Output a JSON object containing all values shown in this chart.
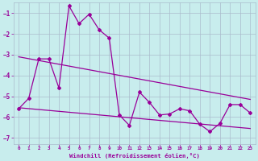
{
  "xlabel": "Windchill (Refroidissement éolien,°C)",
  "bg_color": "#c8eded",
  "grid_color": "#aabbcc",
  "line_color": "#990099",
  "xlim": [
    -0.5,
    23.5
  ],
  "ylim": [
    -7.3,
    -0.5
  ],
  "yticks": [
    -7,
    -6,
    -5,
    -4,
    -3,
    -2,
    -1
  ],
  "xticks": [
    0,
    1,
    2,
    3,
    4,
    5,
    6,
    7,
    8,
    9,
    10,
    11,
    12,
    13,
    14,
    15,
    16,
    17,
    18,
    19,
    20,
    21,
    22,
    23
  ],
  "line1_x": [
    0,
    1,
    2,
    3,
    4,
    5,
    6,
    7,
    8,
    9,
    10,
    11,
    12,
    13,
    14,
    15,
    16,
    17,
    18,
    19,
    20,
    21,
    22,
    23
  ],
  "line1_y": [
    -5.6,
    -5.1,
    -3.2,
    -3.2,
    -4.6,
    -0.65,
    -1.5,
    -1.05,
    -1.8,
    -2.2,
    -5.9,
    -6.4,
    -4.8,
    -5.3,
    -5.9,
    -5.85,
    -5.6,
    -5.7,
    -6.35,
    -6.7,
    -6.3,
    -5.4,
    -5.4,
    -5.8
  ],
  "line2_x": [
    0,
    23
  ],
  "line2_y": [
    -3.1,
    -5.15
  ],
  "line3_x": [
    0,
    23
  ],
  "line3_y": [
    -5.55,
    -6.55
  ]
}
